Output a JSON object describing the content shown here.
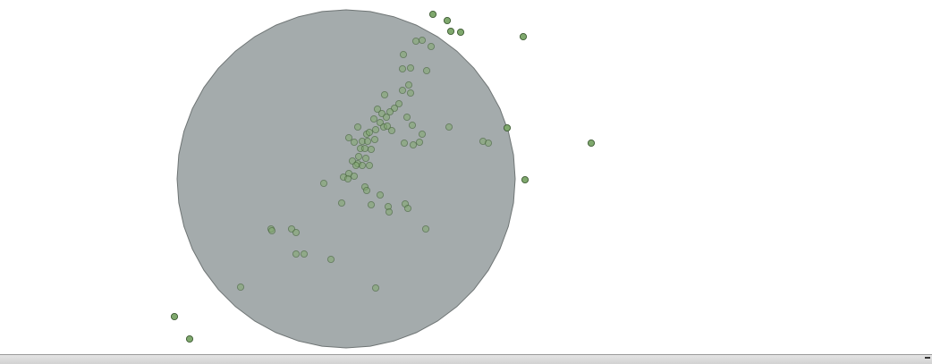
{
  "colors": {
    "background": "#ffffff",
    "circle_fill": "#a4abac",
    "circle_stroke": "#6f7575",
    "point_fill": "#7fa86d",
    "point_stroke": "#3d5a33",
    "status_bar": "#d8d8d8"
  },
  "canvas": {
    "feature_count_inside": 74,
    "feature_count_outside": 11
  },
  "status_bar": {
    "grip_icon": "resize-grip-icon"
  }
}
